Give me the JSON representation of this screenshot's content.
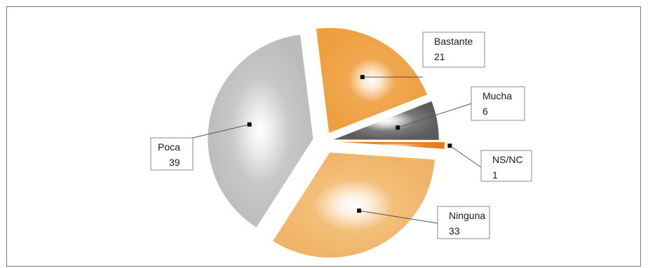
{
  "chart_data": {
    "type": "pie",
    "style": "exploded 3D-shaded pie",
    "slices": [
      {
        "label": "Bastante",
        "value": 21,
        "color": "#f0a850"
      },
      {
        "label": "Mucha",
        "value": 6,
        "color": "#6c6c6c"
      },
      {
        "label": "NS/NC",
        "value": 1,
        "color": "#e8872c"
      },
      {
        "label": "Ninguna",
        "value": 33,
        "color": "#f3bf78"
      },
      {
        "label": "Poca",
        "value": 39,
        "color": "#c4c4c4"
      }
    ]
  }
}
